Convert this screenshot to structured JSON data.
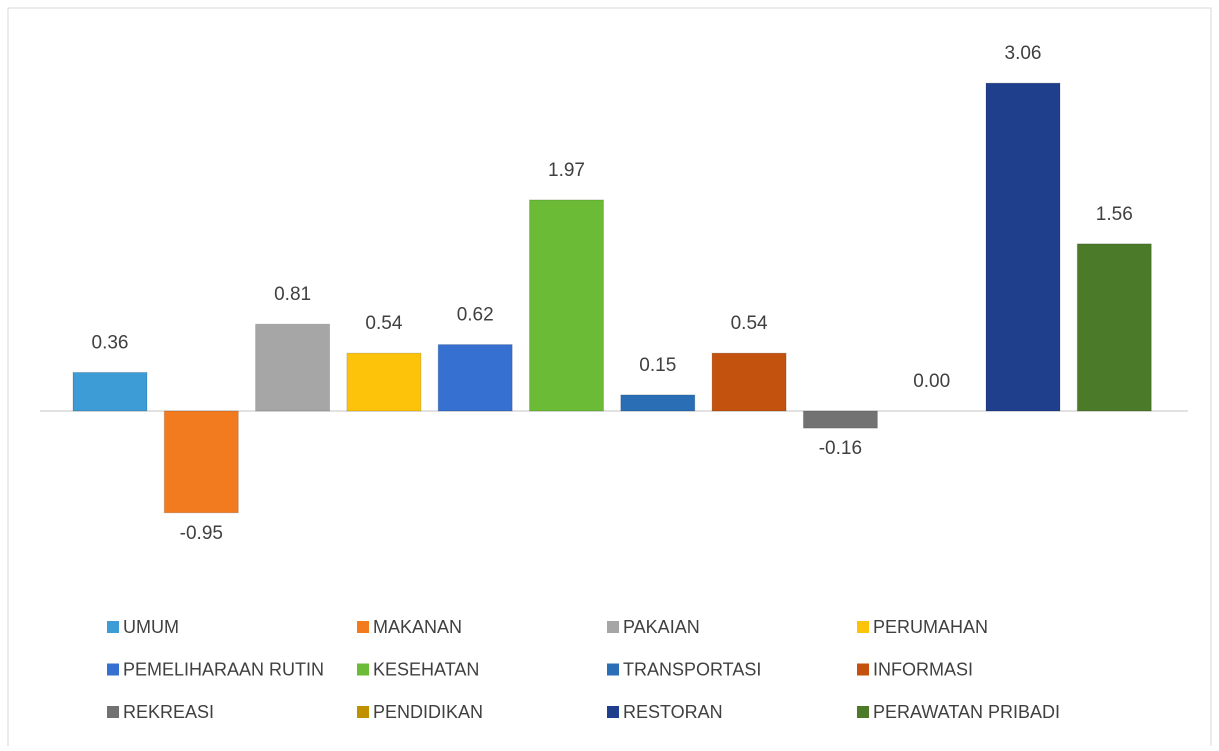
{
  "chart_data": {
    "type": "bar",
    "categories": [
      "UMUM",
      "MAKANAN",
      "PAKAIAN",
      "PERUMAHAN",
      "PEMELIHARAAN RUTIN",
      "KESEHATAN",
      "TRANSPORTASI",
      "INFORMASI",
      "REKREASI",
      "PENDIDIKAN",
      "RESTORAN",
      "PERAWATAN PRIBADI"
    ],
    "values": [
      0.36,
      -0.95,
      0.81,
      0.54,
      0.62,
      1.97,
      0.15,
      0.54,
      -0.16,
      0,
      3.06,
      1.56
    ],
    "value_labels": [
      "0.36",
      "-0.95",
      "0.81",
      "0.54",
      "0.62",
      "1.97",
      "0.15",
      "0.54",
      "-0.16",
      "0.00",
      "3.06",
      "1.56"
    ],
    "colors": [
      "#3d9bd6",
      "#f27a1f",
      "#a6a6a6",
      "#fdc30a",
      "#3670d1",
      "#6cbb36",
      "#2a6fb5",
      "#c4520f",
      "#727272",
      "#bf9000",
      "#1f3e8c",
      "#4b7a29"
    ],
    "ylim": [
      -1.4,
      3.5
    ],
    "legend": "bottom"
  }
}
